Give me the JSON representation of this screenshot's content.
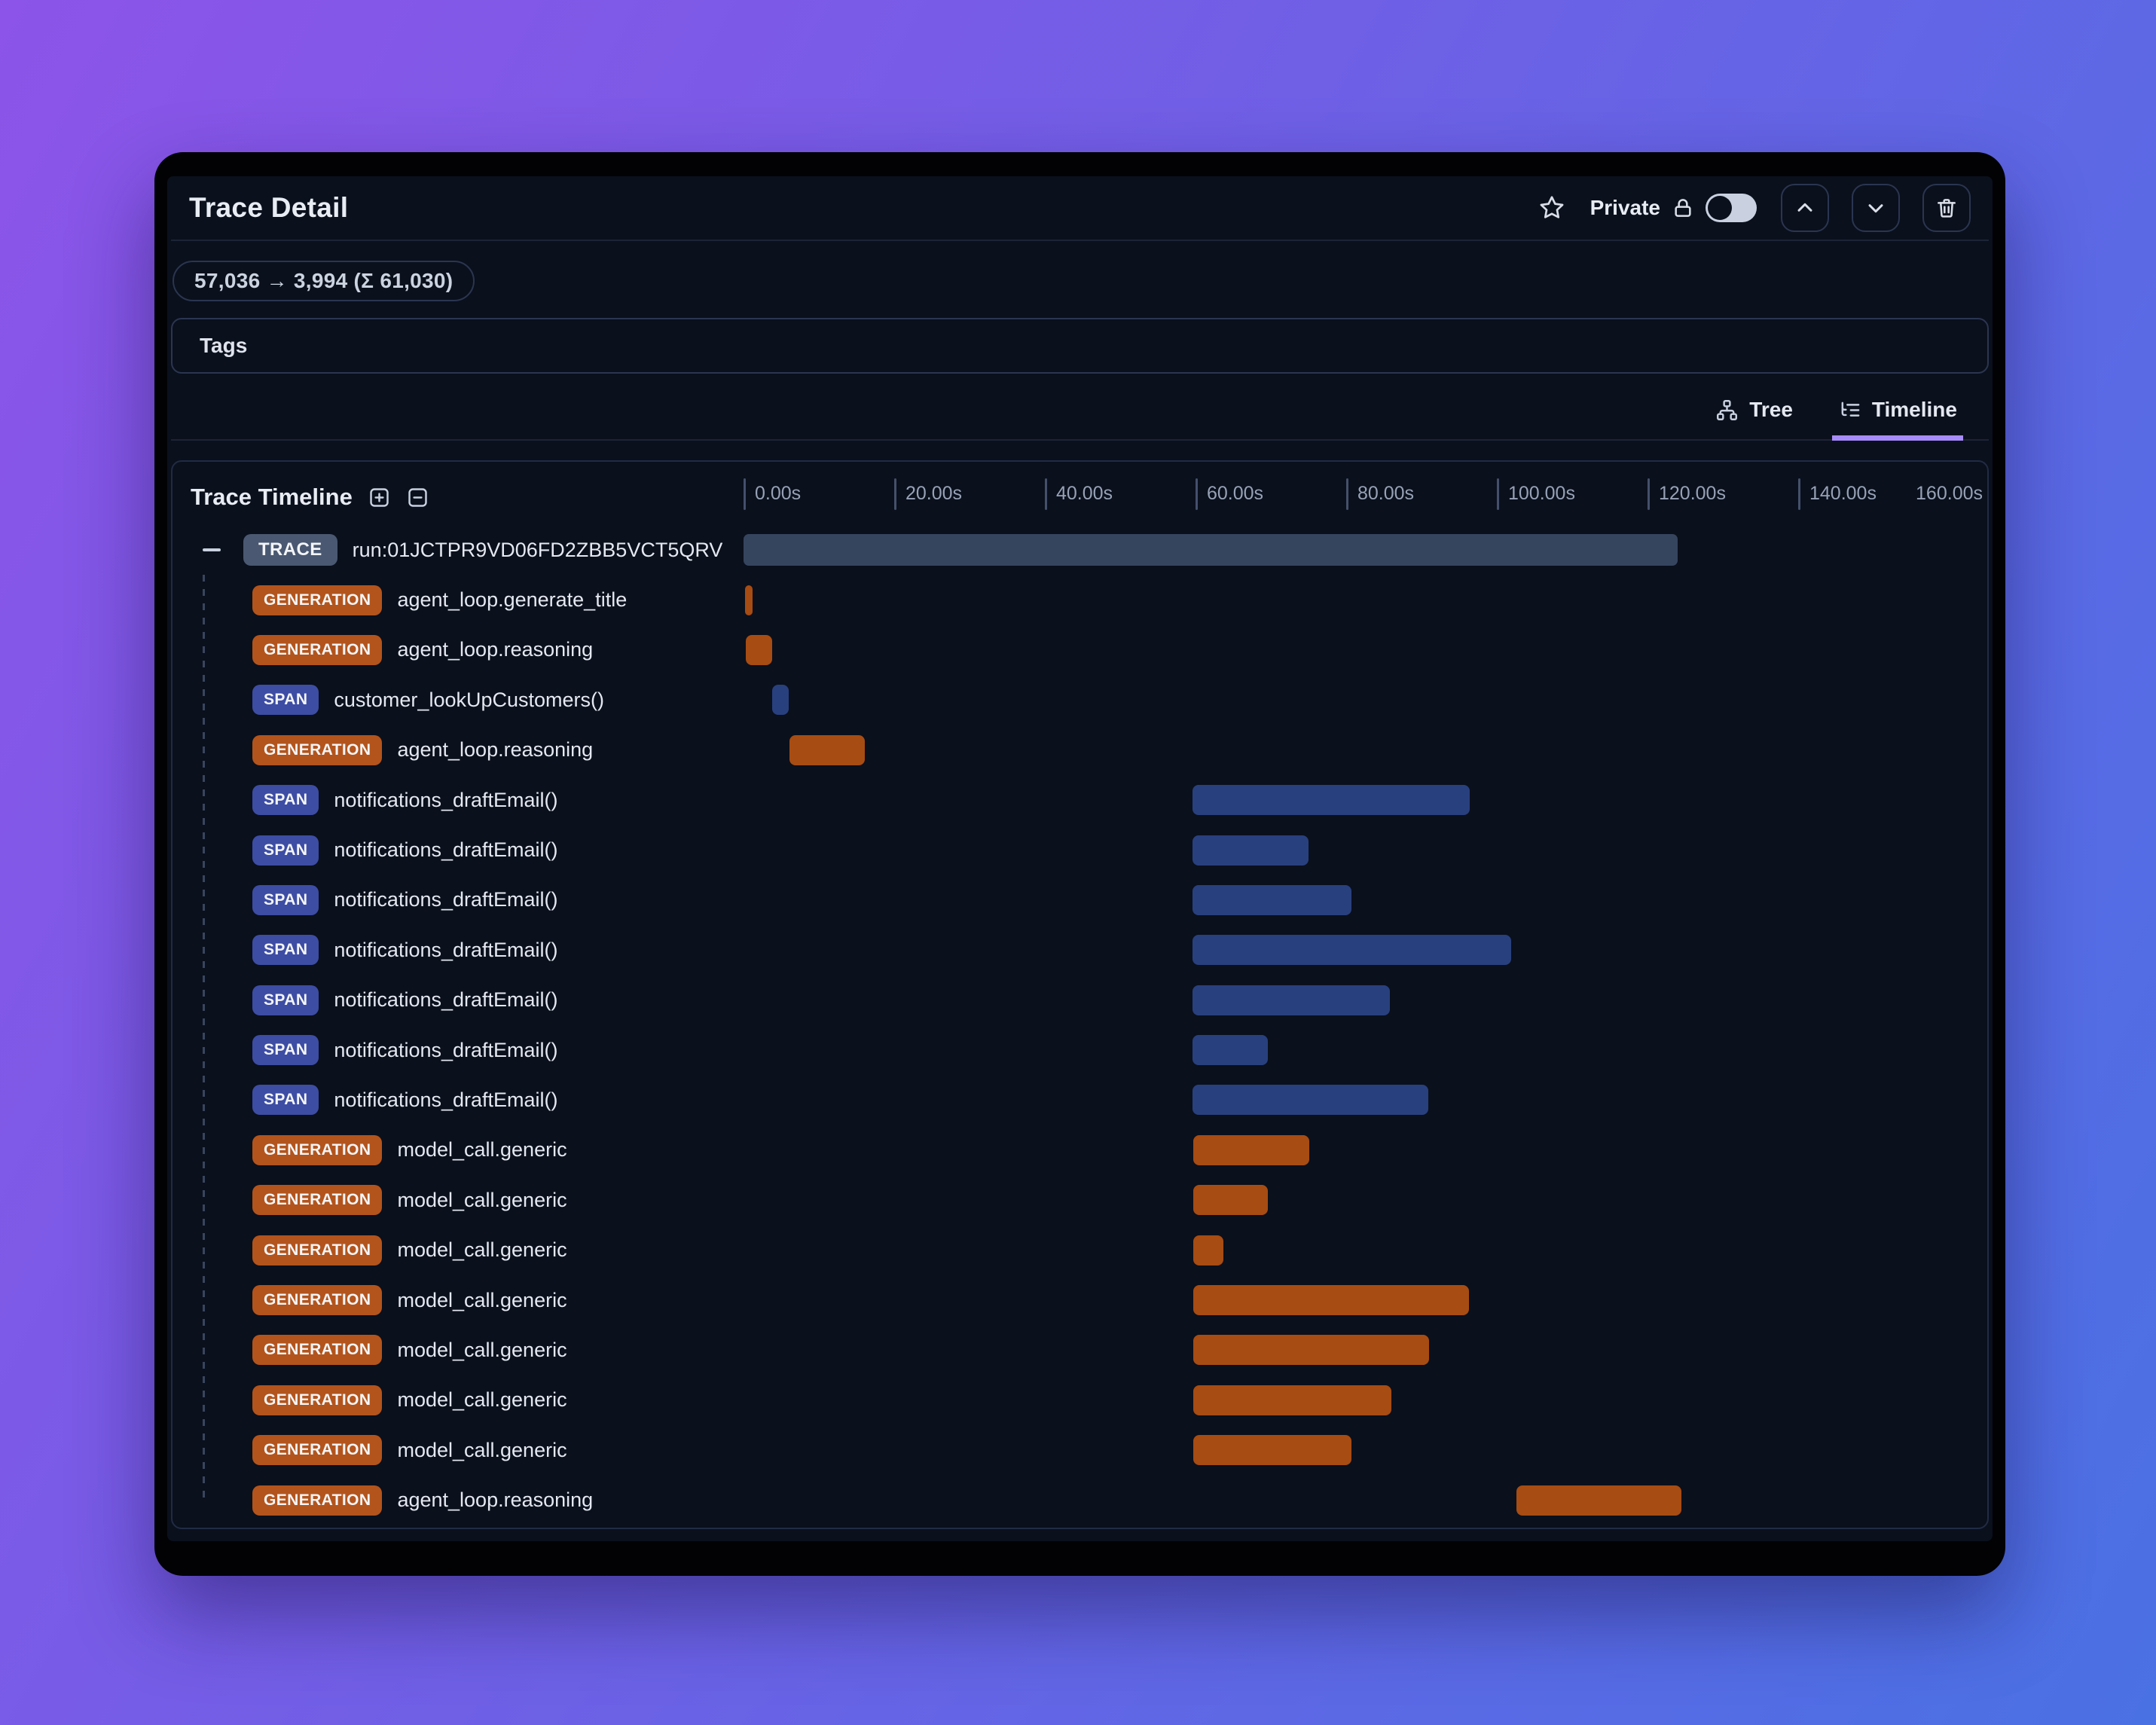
{
  "window": {
    "title": "Trace Detail"
  },
  "header": {
    "privacy_label": "Private",
    "toggle_state": "off",
    "buttons": [
      "move-up",
      "move-down",
      "delete"
    ]
  },
  "tokens": {
    "summary": "57,036 → 3,994 (Σ 61,030)"
  },
  "tags": {
    "label": "Tags"
  },
  "tabs": {
    "tree": {
      "label": "Tree",
      "active": false
    },
    "timeline": {
      "label": "Timeline",
      "active": true
    }
  },
  "timeline": {
    "title": "Trace Timeline",
    "axis": {
      "tick_labels": [
        "0.00s",
        "20.00s",
        "40.00s",
        "60.00s",
        "80.00s",
        "100.00s",
        "120.00s",
        "140.00s"
      ],
      "end_label": "160.00s",
      "tick_interval_s": 20,
      "max_s": 160
    },
    "rows": [
      {
        "kind": "trace",
        "badge": "TRACE",
        "label": "run:01JCTPR9VD06FD2ZBB5VCT5QRV",
        "start_s": 0,
        "duration_s": 124.0
      },
      {
        "kind": "generation",
        "badge": "GENERATION",
        "label": "agent_loop.generate_title",
        "start_s": 0.2,
        "duration_s": 1.0
      },
      {
        "kind": "generation",
        "badge": "GENERATION",
        "label": "agent_loop.reasoning",
        "start_s": 0.3,
        "duration_s": 3.5
      },
      {
        "kind": "span",
        "badge": "SPAN",
        "label": "customer_lookUpCustomers()",
        "start_s": 3.8,
        "duration_s": 2.2
      },
      {
        "kind": "generation",
        "badge": "GENERATION",
        "label": "agent_loop.reasoning",
        "start_s": 6.1,
        "duration_s": 10.0
      },
      {
        "kind": "span",
        "badge": "SPAN",
        "label": "notifications_draftEmail()",
        "start_s": 59.6,
        "duration_s": 36.8
      },
      {
        "kind": "span",
        "badge": "SPAN",
        "label": "notifications_draftEmail()",
        "start_s": 59.6,
        "duration_s": 15.4
      },
      {
        "kind": "span",
        "badge": "SPAN",
        "label": "notifications_draftEmail()",
        "start_s": 59.6,
        "duration_s": 21.1
      },
      {
        "kind": "span",
        "badge": "SPAN",
        "label": "notifications_draftEmail()",
        "start_s": 59.6,
        "duration_s": 42.3
      },
      {
        "kind": "span",
        "badge": "SPAN",
        "label": "notifications_draftEmail()",
        "start_s": 59.6,
        "duration_s": 26.2
      },
      {
        "kind": "span",
        "badge": "SPAN",
        "label": "notifications_draftEmail()",
        "start_s": 59.6,
        "duration_s": 10.0
      },
      {
        "kind": "span",
        "badge": "SPAN",
        "label": "notifications_draftEmail()",
        "start_s": 59.6,
        "duration_s": 31.3
      },
      {
        "kind": "generation",
        "badge": "GENERATION",
        "label": "model_call.generic",
        "start_s": 59.7,
        "duration_s": 15.4
      },
      {
        "kind": "generation",
        "badge": "GENERATION",
        "label": "model_call.generic",
        "start_s": 59.7,
        "duration_s": 9.9
      },
      {
        "kind": "generation",
        "badge": "GENERATION",
        "label": "model_call.generic",
        "start_s": 59.7,
        "duration_s": 4.0
      },
      {
        "kind": "generation",
        "badge": "GENERATION",
        "label": "model_call.generic",
        "start_s": 59.7,
        "duration_s": 36.6
      },
      {
        "kind": "generation",
        "badge": "GENERATION",
        "label": "model_call.generic",
        "start_s": 59.7,
        "duration_s": 31.3
      },
      {
        "kind": "generation",
        "badge": "GENERATION",
        "label": "model_call.generic",
        "start_s": 59.7,
        "duration_s": 26.3
      },
      {
        "kind": "generation",
        "badge": "GENERATION",
        "label": "model_call.generic",
        "start_s": 59.7,
        "duration_s": 21.0
      },
      {
        "kind": "generation",
        "badge": "GENERATION",
        "label": "agent_loop.reasoning",
        "start_s": 102.6,
        "duration_s": 21.9
      }
    ]
  },
  "colors": {
    "background_gradient": [
      "#8C54E8",
      "#4A71E4"
    ],
    "card_background": "#0A101C",
    "active_tab_underline": "#A78BFA",
    "trace_badge": "#4A5871",
    "trace_bar": "#36455E",
    "generation_badge": "#B3541C",
    "generation_bar": "#A74C12",
    "span_badge": "#3D4DA4",
    "span_bar": "#29407E"
  }
}
